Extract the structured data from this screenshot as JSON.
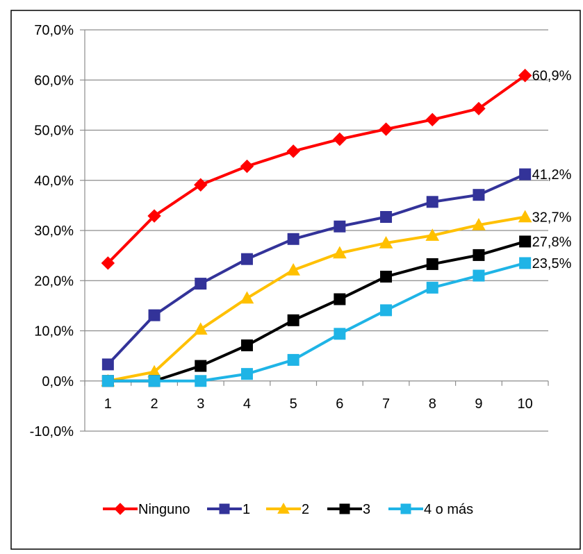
{
  "chart_data": {
    "type": "line",
    "title": "",
    "xlabel": "",
    "ylabel": "",
    "categories": [
      "1",
      "2",
      "3",
      "4",
      "5",
      "6",
      "7",
      "8",
      "9",
      "10"
    ],
    "ylim": [
      -10,
      70
    ],
    "yticks": [
      -10,
      0,
      10,
      20,
      30,
      40,
      50,
      60,
      70
    ],
    "ytick_labels": [
      "-10,0%",
      "0,0%",
      "10,0%",
      "20,0%",
      "30,0%",
      "40,0%",
      "50,0%",
      "60,0%",
      "70,0%"
    ],
    "grid": true,
    "legend_position": "bottom",
    "series": [
      {
        "name": "Ninguno",
        "color": "#ff0000",
        "marker": "diamond",
        "values": [
          23.5,
          32.9,
          39.1,
          42.8,
          45.8,
          48.2,
          50.2,
          52.1,
          54.3,
          60.9
        ],
        "end_label": "60,9%"
      },
      {
        "name": "1",
        "color": "#333399",
        "marker": "square",
        "values": [
          3.3,
          13.1,
          19.4,
          24.3,
          28.3,
          30.8,
          32.7,
          35.7,
          37.1,
          41.2
        ],
        "end_label": "41,2%"
      },
      {
        "name": "2",
        "color": "#ffc000",
        "marker": "triangle",
        "values": [
          0.0,
          1.8,
          10.3,
          16.5,
          22.1,
          25.5,
          27.5,
          29.0,
          31.1,
          32.7
        ],
        "end_label": "32,7%"
      },
      {
        "name": "3",
        "color": "#000000",
        "marker": "square",
        "values": [
          0.0,
          0.0,
          3.0,
          7.1,
          12.1,
          16.3,
          20.8,
          23.3,
          25.1,
          27.8
        ],
        "end_label": "27,8%"
      },
      {
        "name": "4 o más",
        "color": "#1fb4e6",
        "marker": "square",
        "values": [
          0.0,
          0.0,
          0.0,
          1.4,
          4.2,
          9.4,
          14.1,
          18.6,
          21.0,
          23.5
        ],
        "end_label": "23,5%"
      }
    ]
  }
}
